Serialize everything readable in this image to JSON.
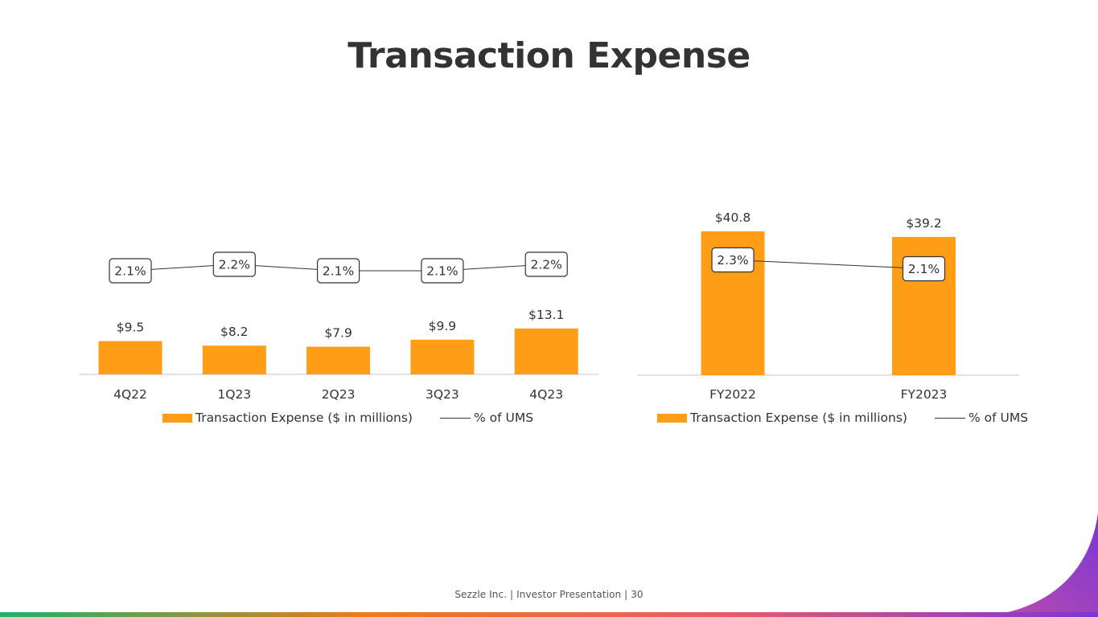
{
  "title": "Transaction Expense",
  "footer": "Sezzle Inc. | Investor Presentation | 30",
  "colors": {
    "bar": "#FF9D17",
    "line": "#333333",
    "axis": "#D9D9D9",
    "gradient": [
      "#1BB36B",
      "#F07A1C",
      "#E85A6B",
      "#7B35D8"
    ]
  },
  "chart_data": [
    {
      "type": "bar",
      "categories": [
        "4Q22",
        "1Q23",
        "2Q23",
        "3Q23",
        "4Q23"
      ],
      "series": [
        {
          "name": "Transaction Expense ($ in millions)",
          "values": [
            9.5,
            8.2,
            7.9,
            9.9,
            13.1
          ],
          "labels": [
            "$9.5",
            "$8.2",
            "$7.9",
            "$9.9",
            "$13.1"
          ]
        },
        {
          "name": "% of UMS",
          "type": "line",
          "values": [
            2.1,
            2.2,
            2.1,
            2.1,
            2.2
          ],
          "labels": [
            "2.1%",
            "2.2%",
            "2.1%",
            "2.1%",
            "2.2%"
          ]
        }
      ],
      "legend_position": "bottom",
      "grid": false
    },
    {
      "type": "bar",
      "categories": [
        "FY2022",
        "FY2023"
      ],
      "series": [
        {
          "name": "Transaction Expense ($ in millions)",
          "values": [
            40.8,
            39.2
          ],
          "labels": [
            "$40.8",
            "$39.2"
          ]
        },
        {
          "name": "% of UMS",
          "type": "line",
          "values": [
            2.3,
            2.1
          ],
          "labels": [
            "2.3%",
            "2.1%"
          ]
        }
      ],
      "legend_position": "bottom",
      "grid": false
    }
  ]
}
